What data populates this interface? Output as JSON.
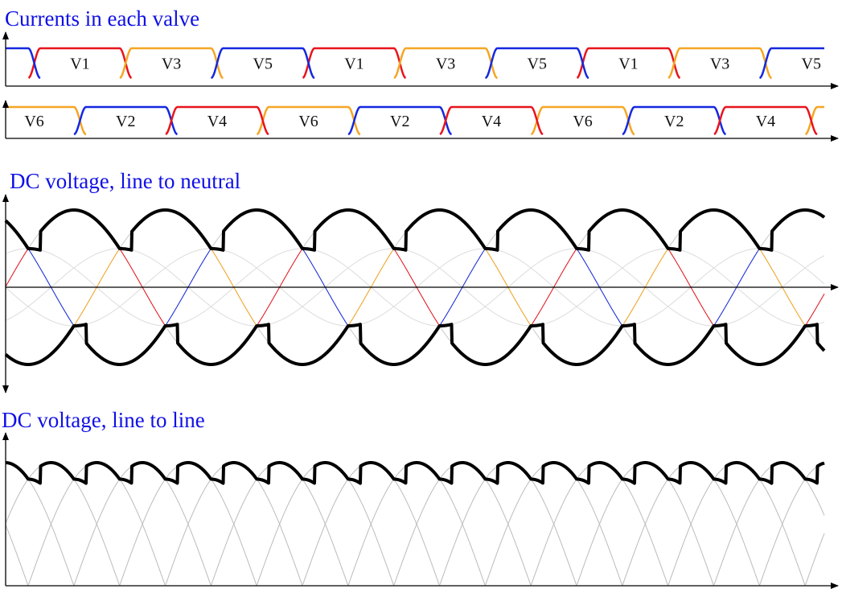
{
  "titles": [
    "Currents in each valve",
    "DC voltage, line to neutral",
    "DC voltage, line to line"
  ],
  "upper_valves": [
    "V1",
    "V3",
    "V5",
    "V1",
    "V3",
    "V5",
    "V1",
    "V3",
    "V5"
  ],
  "lower_valves": [
    "V6",
    "V2",
    "V4",
    "V6",
    "V2",
    "V4",
    "V6",
    "V2",
    "V4"
  ]
}
